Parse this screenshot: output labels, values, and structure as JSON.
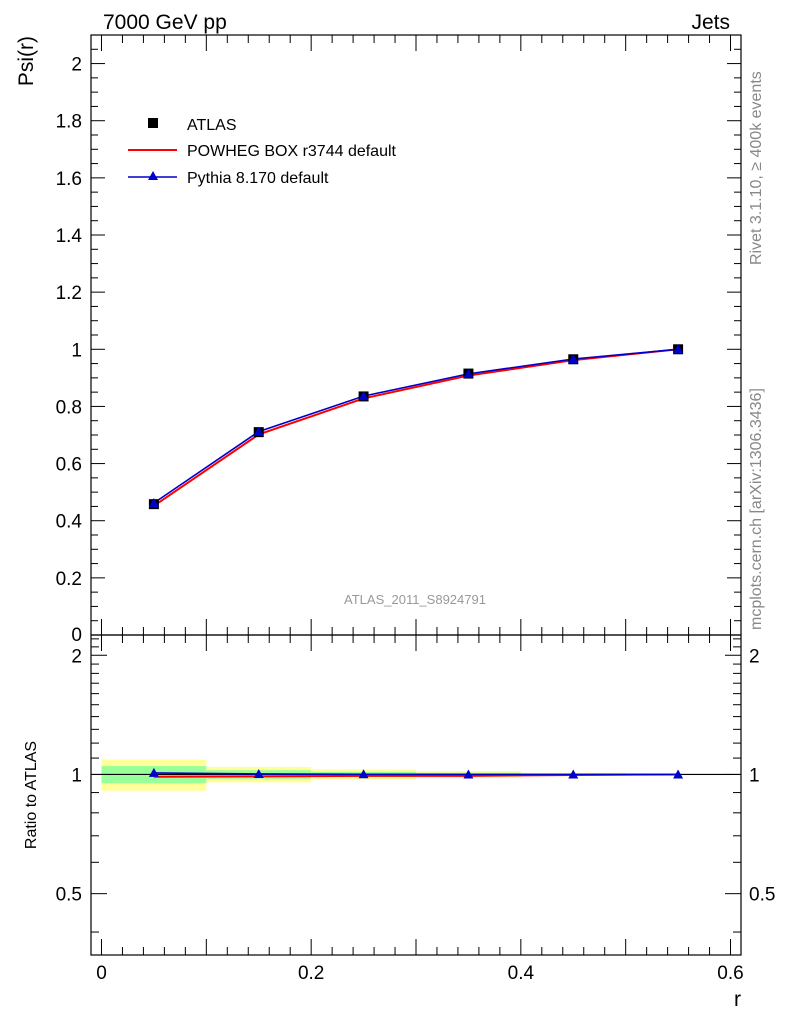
{
  "header": {
    "left": "7000 GeV pp",
    "right": "Jets"
  },
  "side_labels": {
    "top": "Rivet 3.1.10, ≥ 400k events",
    "bottom": "mcplots.cern.ch [arXiv:1306.3436]"
  },
  "watermark": "ATLAS_2011_S8924791",
  "colors": {
    "atlas": "#000000",
    "powheg": "#ff0000",
    "pythia": "#0000cc",
    "band_inner": "#99ff99",
    "band_outer": "#ffff99"
  },
  "chart_data": [
    {
      "type": "line",
      "ylabel": "Psi(r)",
      "xlim": [
        -0.01,
        0.61
      ],
      "ylim": [
        0,
        2.1
      ],
      "y_ticks": [
        0.2,
        0.4,
        0.6,
        0.8,
        1,
        1.2,
        1.4,
        1.6,
        1.8,
        2
      ],
      "y_tick_labels": [
        "0.2",
        "0.4",
        "0.6",
        "0.8",
        "1",
        "1.2",
        "1.4",
        "1.6",
        "1.8",
        "2"
      ],
      "y_zero_label": "0",
      "x": [
        0.05,
        0.15,
        0.25,
        0.35,
        0.45,
        0.55
      ],
      "series": [
        {
          "name": "ATLAS",
          "style": "marker-square",
          "values": [
            0.458,
            0.71,
            0.835,
            0.915,
            0.965,
            1.0
          ]
        },
        {
          "name": "POWHEG BOX r3744 default",
          "style": "line",
          "values": [
            0.452,
            0.702,
            0.828,
            0.908,
            0.962,
            1.0
          ]
        },
        {
          "name": "Pythia 8.170 default",
          "style": "line-triangle",
          "values": [
            0.462,
            0.712,
            0.836,
            0.914,
            0.966,
            1.0
          ]
        }
      ],
      "legend_position": "top-left"
    },
    {
      "type": "line",
      "ylabel": "Ratio to ATLAS",
      "xlabel": "r",
      "xlim": [
        -0.01,
        0.61
      ],
      "ylim": [
        0.35,
        2.25
      ],
      "y_ticks": [
        0.5,
        1,
        2
      ],
      "y_tick_labels": [
        "0.5",
        "1",
        "2"
      ],
      "x_ticks": [
        0,
        0.2,
        0.4,
        0.6
      ],
      "x_tick_labels": [
        "0",
        "0.2",
        "0.4",
        "0.6"
      ],
      "bins": [
        [
          0.0,
          0.1
        ],
        [
          0.1,
          0.2
        ],
        [
          0.2,
          0.3
        ],
        [
          0.3,
          0.4
        ],
        [
          0.4,
          0.5
        ],
        [
          0.5,
          0.6
        ]
      ],
      "band_inner": [
        [
          0.95,
          1.05
        ],
        [
          0.975,
          1.025
        ],
        [
          0.985,
          1.015
        ],
        [
          0.99,
          1.01
        ],
        [
          0.995,
          1.005
        ],
        [
          0.998,
          1.002
        ]
      ],
      "band_outer": [
        [
          0.91,
          1.09
        ],
        [
          0.955,
          1.045
        ],
        [
          0.97,
          1.03
        ],
        [
          0.98,
          1.02
        ],
        [
          0.99,
          1.01
        ],
        [
          0.995,
          1.005
        ]
      ],
      "x": [
        0.05,
        0.15,
        0.25,
        0.35,
        0.45,
        0.55
      ],
      "series": [
        {
          "name": "POWHEG BOX r3744 default",
          "values": [
            0.987,
            0.989,
            0.992,
            0.992,
            0.997,
            1.0
          ]
        },
        {
          "name": "Pythia 8.170 default",
          "values": [
            1.009,
            1.003,
            1.001,
            1.0,
            1.0,
            1.0
          ]
        }
      ]
    }
  ]
}
